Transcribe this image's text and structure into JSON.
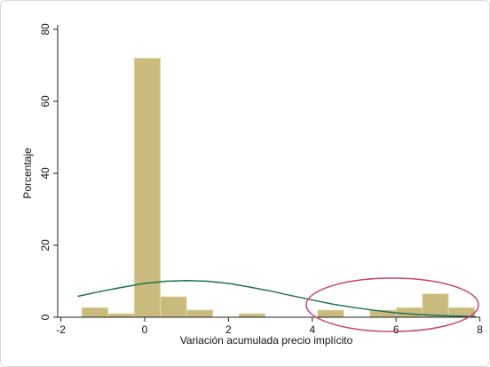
{
  "chart_data": {
    "type": "histogram",
    "xlabel": "Variación acumulada precio implícito",
    "ylabel": "Porcentaje",
    "bins": [
      -1.5,
      -0.875,
      -0.25,
      0.375,
      1.0,
      1.625,
      2.25,
      2.875,
      3.5,
      4.125,
      4.75,
      5.375,
      6.0,
      6.625,
      7.25,
      7.875
    ],
    "values": [
      2.7,
      1,
      72,
      5.7,
      2,
      0,
      1,
      0,
      0,
      2,
      0,
      2,
      2.7,
      6.5,
      2.7
    ],
    "color": "#c9ba7d",
    "overlay": {
      "type": "line",
      "color": "#1f6e5e",
      "x": [
        -1.6,
        -1.0,
        -0.5,
        0,
        0.5,
        1.0,
        1.5,
        2.0,
        2.5,
        3.0,
        3.5,
        4.0,
        4.5,
        5.0,
        5.5,
        6.0,
        6.5,
        7.0,
        7.5,
        7.9
      ],
      "values": [
        5.8,
        7.3,
        8.4,
        9.4,
        10.0,
        10.2,
        10.0,
        9.4,
        8.4,
        7.3,
        6.0,
        4.8,
        3.6,
        2.7,
        1.9,
        1.2,
        0.8,
        0.5,
        0.3,
        0.2
      ]
    },
    "xlim": [
      -2,
      8
    ],
    "xticks": [
      -2,
      0,
      2,
      4,
      6,
      8
    ],
    "ylim": [
      0,
      80
    ],
    "yticks": [
      0,
      20,
      40,
      60,
      80
    ],
    "grid": false
  }
}
